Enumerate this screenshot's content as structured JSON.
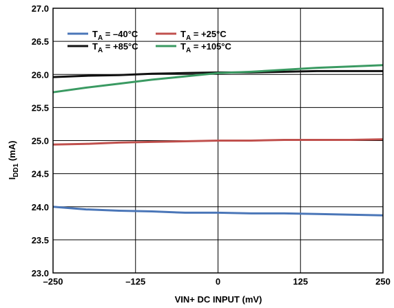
{
  "chart_data": {
    "type": "line",
    "xlabel": "VIN+ DC INPUT (mV)",
    "ylabel": "I",
    "ylabel_sub": "DD1",
    "ylabel_unit": " (mA)",
    "xlim": [
      -250,
      250
    ],
    "ylim": [
      23.0,
      27.0
    ],
    "x_ticks": [
      -250,
      -125,
      0,
      125,
      250
    ],
    "x_tick_labels": [
      "–250",
      "–125",
      "0",
      "125",
      "250"
    ],
    "y_ticks": [
      23.0,
      23.5,
      24.0,
      24.5,
      25.0,
      25.5,
      26.0,
      26.5,
      27.0
    ],
    "y_tick_labels": [
      "23.0",
      "23.5",
      "24.0",
      "24.5",
      "25.0",
      "25.5",
      "26.0",
      "26.5",
      "27.0"
    ],
    "grid": true,
    "legend_position": "top-left",
    "series": [
      {
        "name": "T_A = –40°C",
        "legend_main": "T",
        "legend_sub": "A",
        "legend_rest": " = –40°C",
        "color": "#4a76b8",
        "x": [
          -250,
          -200,
          -150,
          -100,
          -50,
          0,
          50,
          100,
          150,
          200,
          250
        ],
        "y": [
          24.0,
          23.96,
          23.94,
          23.93,
          23.91,
          23.91,
          23.9,
          23.9,
          23.89,
          23.88,
          23.87
        ]
      },
      {
        "name": "T_A = +25°C",
        "legend_main": "T",
        "legend_sub": "A",
        "legend_rest": " = +25°C",
        "color": "#c0504d",
        "x": [
          -250,
          -200,
          -150,
          -100,
          -50,
          0,
          50,
          100,
          150,
          200,
          250
        ],
        "y": [
          24.94,
          24.95,
          24.97,
          24.98,
          24.99,
          25.0,
          25.0,
          25.01,
          25.01,
          25.01,
          25.02
        ]
      },
      {
        "name": "T_A = +85°C",
        "legend_main": "T",
        "legend_sub": "A",
        "legend_rest": " = +85°C",
        "color": "#111111",
        "x": [
          -250,
          -200,
          -150,
          -100,
          -50,
          0,
          50,
          100,
          150,
          200,
          250
        ],
        "y": [
          25.96,
          25.98,
          25.99,
          26.01,
          26.02,
          26.03,
          26.03,
          26.04,
          26.05,
          26.05,
          26.05
        ]
      },
      {
        "name": "T_A = +105°C",
        "legend_main": "T",
        "legend_sub": "A",
        "legend_rest": " = +105°C",
        "color": "#3a9a62",
        "x": [
          -250,
          -200,
          -150,
          -100,
          -50,
          0,
          50,
          100,
          150,
          200,
          250
        ],
        "y": [
          25.73,
          25.8,
          25.86,
          25.92,
          25.97,
          26.02,
          26.04,
          26.07,
          26.1,
          26.12,
          26.14
        ]
      }
    ]
  }
}
